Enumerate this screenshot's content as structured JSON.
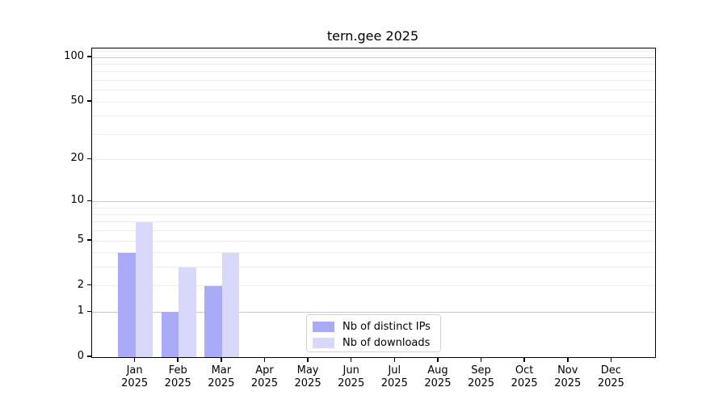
{
  "title": "tern.gee 2025",
  "chart_data": {
    "type": "bar",
    "title": "tern.gee 2025",
    "categories": [
      "Jan\n2025",
      "Feb\n2025",
      "Mar\n2025",
      "Apr\n2025",
      "May\n2025",
      "Jun\n2025",
      "Jul\n2025",
      "Aug\n2025",
      "Sep\n2025",
      "Oct\n2025",
      "Nov\n2025",
      "Dec\n2025"
    ],
    "series": [
      {
        "name": "Nb of distinct IPs",
        "color": "#aaabf8",
        "values": [
          4,
          1,
          2,
          0,
          0,
          0,
          0,
          0,
          0,
          0,
          0,
          0
        ]
      },
      {
        "name": "Nb of downloads",
        "color": "#d8d9fa",
        "values": [
          7,
          3,
          4,
          0,
          0,
          0,
          0,
          0,
          0,
          0,
          0,
          0
        ]
      }
    ],
    "xlabel": "",
    "ylabel": "",
    "yscale": "log1p",
    "ylim": [
      0,
      115
    ],
    "ytick_labels": [
      "0",
      "1",
      "2",
      "5",
      "10",
      "20",
      "50",
      "100"
    ],
    "ytick_values": [
      0,
      1,
      2,
      5,
      10,
      20,
      50,
      100
    ],
    "grid": {
      "major_values": [
        1,
        10,
        100
      ],
      "minor_values": [
        2,
        3,
        4,
        5,
        6,
        7,
        8,
        9,
        20,
        30,
        40,
        50,
        60,
        70,
        80,
        90,
        110
      ],
      "major_color": "#c9c9c9",
      "minor_color": "#ededed",
      "grid_on": true
    },
    "legend": {
      "position": "lower center",
      "border_color": "#d2d2d2"
    },
    "axis_color": "#000000",
    "background_color": "#ffffff"
  }
}
